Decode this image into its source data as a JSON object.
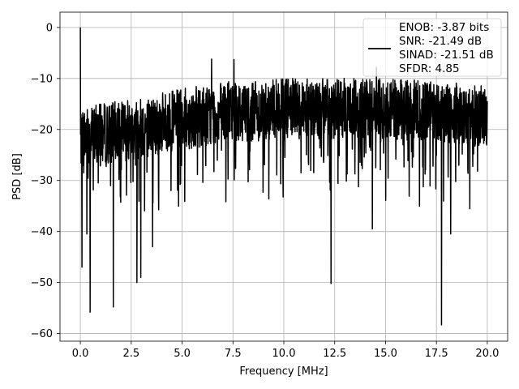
{
  "chart_data": {
    "type": "line",
    "title": "",
    "xlabel": "Frequency [MHz]",
    "ylabel": "PSD [dB]",
    "xlim": [
      -1.0,
      21.0
    ],
    "ylim": [
      -61.5,
      3.0
    ],
    "xticks": [
      0.0,
      2.5,
      5.0,
      7.5,
      10.0,
      12.5,
      15.0,
      17.5,
      20.0
    ],
    "xtick_labels": [
      "0.0",
      "2.5",
      "5.0",
      "7.5",
      "10.0",
      "12.5",
      "15.0",
      "17.5",
      "20.0"
    ],
    "yticks": [
      0,
      -10,
      -20,
      -30,
      -40,
      -50,
      -60
    ],
    "ytick_labels": [
      "0",
      "−10",
      "−20",
      "−30",
      "−40",
      "−50",
      "−60"
    ],
    "grid": true,
    "legend_position": "upper right",
    "legend_entries": [
      "ENOB: -3.87 bits",
      "SNR: -21.49 dB",
      "SINAD: -21.51 dB",
      "SFDR: 4.85"
    ],
    "series_color": "#000000",
    "series": [
      {
        "name": "ENOB: -3.87 bits",
        "x_start": 0.0,
        "x_end": 20.0,
        "points_count": 2048,
        "mean_db_profile": [
          [
            0.0,
            -21.5
          ],
          [
            2.5,
            -20.0
          ],
          [
            5.0,
            -18.0
          ],
          [
            7.5,
            -16.5
          ],
          [
            10.0,
            -16.0
          ],
          [
            12.5,
            -16.0
          ],
          [
            15.0,
            -15.8
          ],
          [
            17.5,
            -16.5
          ],
          [
            20.0,
            -17.5
          ]
        ],
        "notable_points": [
          {
            "x": 0.0,
            "y": 0.0
          },
          {
            "x": 0.08,
            "y": -47.0
          },
          {
            "x": 0.32,
            "y": -40.5
          },
          {
            "x": 0.48,
            "y": -55.8
          },
          {
            "x": 1.62,
            "y": -54.8
          },
          {
            "x": 2.78,
            "y": -50.0
          },
          {
            "x": 2.97,
            "y": -49.0
          },
          {
            "x": 3.55,
            "y": -43.0
          },
          {
            "x": 6.45,
            "y": -6.2
          },
          {
            "x": 7.55,
            "y": -6.3
          },
          {
            "x": 12.32,
            "y": -50.2
          },
          {
            "x": 14.35,
            "y": -39.5
          },
          {
            "x": 14.55,
            "y": -7.8
          },
          {
            "x": 17.75,
            "y": -58.3
          },
          {
            "x": 18.2,
            "y": -40.5
          }
        ]
      }
    ]
  }
}
